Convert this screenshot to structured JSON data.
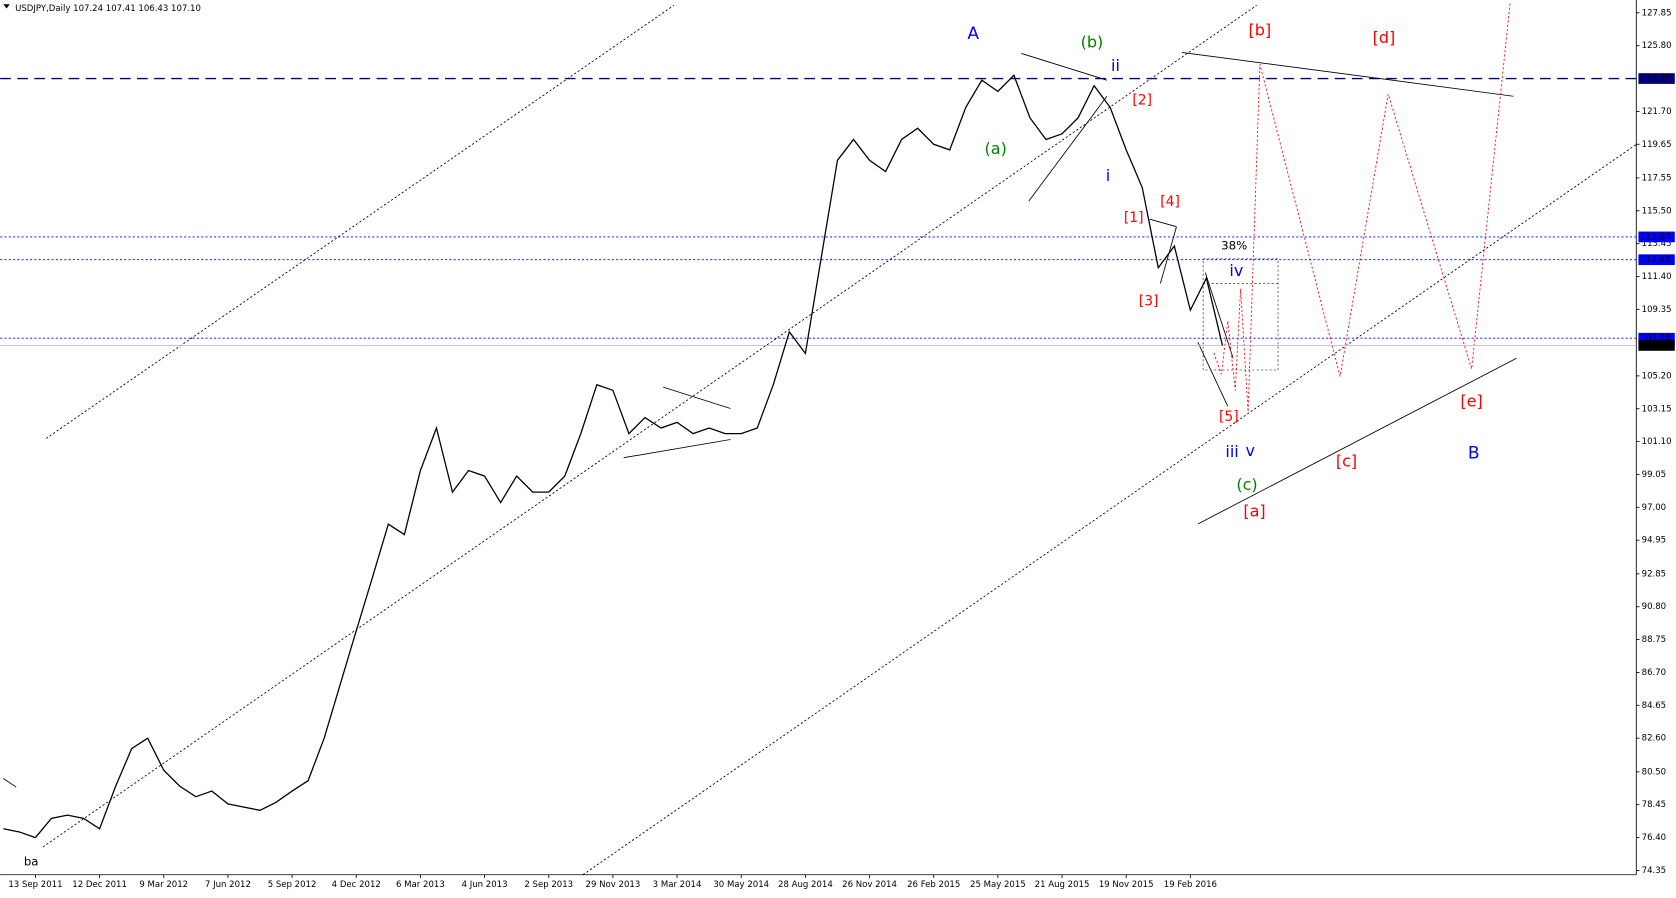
{
  "chart_data": {
    "type": "line",
    "title": "USDJPY,Daily  107.24 107.41 106.43 107.10",
    "color": "#000000",
    "categories": [
      null,
      null,
      "13 Sep 2011",
      null,
      null,
      null,
      "12 Dec 2011",
      null,
      null,
      null,
      "9 Mar 2012",
      null,
      null,
      null,
      "7 Jun 2012",
      null,
      null,
      null,
      "5 Sep 2012",
      null,
      null,
      null,
      "4 Dec 2012",
      null,
      null,
      null,
      "6 Mar 2013",
      null,
      null,
      null,
      "4 Jun 2013",
      null,
      null,
      null,
      "2 Sep 2013",
      null,
      null,
      null,
      "29 Nov 2013",
      null,
      null,
      null,
      "3 Mar 2014",
      null,
      null,
      null,
      "30 May 2014",
      null,
      null,
      null,
      "28 Aug 2014",
      null,
      null,
      null,
      "26 Nov 2014",
      null,
      null,
      null,
      "26 Feb 2015",
      null,
      null,
      null,
      "25 May 2015",
      null,
      null,
      null,
      "21 Aug 2015",
      null,
      null,
      null,
      "19 Nov 2015",
      null,
      null,
      null,
      "19 Feb 2016",
      null,
      null
    ],
    "values": [
      76.95,
      76.75,
      76.4,
      77.6,
      77.8,
      77.6,
      76.95,
      79.6,
      81.95,
      82.6,
      80.6,
      79.6,
      78.95,
      79.3,
      78.5,
      78.3,
      78.1,
      78.6,
      79.3,
      79.95,
      82.6,
      85.95,
      89.3,
      92.6,
      95.95,
      95.3,
      99.3,
      101.95,
      97.95,
      99.3,
      98.95,
      97.3,
      98.95,
      97.95,
      97.95,
      98.95,
      101.6,
      104.65,
      104.3,
      101.6,
      102.6,
      101.95,
      102.3,
      101.6,
      101.95,
      101.6,
      101.6,
      101.95,
      104.65,
      107.95,
      106.6,
      112.65,
      118.65,
      119.95,
      118.65,
      117.95,
      119.95,
      120.65,
      119.65,
      119.3,
      121.95,
      123.65,
      122.95,
      123.95,
      121.3,
      119.95,
      120.3,
      121.3,
      123.3,
      121.95,
      119.3,
      116.95,
      111.95,
      113.3,
      109.3,
      111.3,
      107.1
    ],
    "ylim": [
      74.08,
      128.65
    ],
    "yticks": [
      127.85,
      {
        "value": 125.8,
        "label": "125.80"
      },
      {
        "value": 121.7,
        "label": "121.70"
      },
      119.65,
      117.55,
      {
        "value": 115.5,
        "label": "115.50"
      },
      113.45,
      {
        "value": 111.4,
        "label": "111.40"
      },
      109.35,
      {
        "value": 105.2,
        "label": "105.20"
      },
      103.15,
      {
        "value": 101.1,
        "label": "101.10"
      },
      99.05,
      {
        "value": 97,
        "label": "97.00"
      },
      94.95,
      92.85,
      {
        "value": 90.8,
        "label": "90.80"
      },
      88.75,
      {
        "value": 86.7,
        "label": "86.70"
      },
      84.65,
      {
        "value": 82.6,
        "label": "82.60"
      },
      {
        "value": 80.5,
        "label": "80.50"
      },
      78.45,
      {
        "value": 76.4,
        "label": "76.40"
      },
      74.35
    ],
    "levels": [
      {
        "value": 123.75,
        "label": "123.75",
        "style": "dashed",
        "color": "#000080"
      },
      {
        "value": 113.87,
        "label": "113.87",
        "style": "dotted",
        "color": "#0000ff"
      },
      {
        "value": 112.45,
        "label": "112.45",
        "style": "dotted",
        "color": "#0000ff"
      },
      {
        "value": 107.55,
        "label": "107.55",
        "style": "dotted",
        "color": "#0000ff"
      },
      {
        "value": 107.1,
        "label": "107.10",
        "style": "solid",
        "color": "#c0c0c0"
      }
    ],
    "annotations": [
      {
        "text": "A",
        "color": "#0000ff"
      },
      {
        "text": "(b)",
        "color": "#008000"
      },
      {
        "text": "ii",
        "color": "#0000ff"
      },
      {
        "text": "(a)",
        "color": "#008000"
      },
      {
        "text": "i",
        "color": "#0000ff"
      },
      {
        "text": "[2]",
        "color": "#ff0000"
      },
      {
        "text": "[1]",
        "color": "#ff0000"
      },
      {
        "text": "[4]",
        "color": "#ff0000"
      },
      {
        "text": "[3]",
        "color": "#ff0000"
      },
      {
        "text": "38%",
        "color": "#000000"
      },
      {
        "text": "iv",
        "color": "#0000ff"
      },
      {
        "text": "[5]",
        "color": "#ff0000"
      },
      {
        "text": "iii",
        "color": "#0000ff"
      },
      {
        "text": "v",
        "color": "#0000ff"
      },
      {
        "text": "(c)",
        "color": "#008000"
      },
      {
        "text": "[a]",
        "color": "#ff0000"
      },
      {
        "text": "[b]",
        "color": "#ff0000"
      },
      {
        "text": "[d]",
        "color": "#ff0000"
      },
      {
        "text": "[c]",
        "color": "#ff0000"
      },
      {
        "text": "[e]",
        "color": "#ff0000"
      },
      {
        "text": "B",
        "color": "#0000ff"
      },
      {
        "text": "ba",
        "color": "#000000"
      }
    ]
  }
}
